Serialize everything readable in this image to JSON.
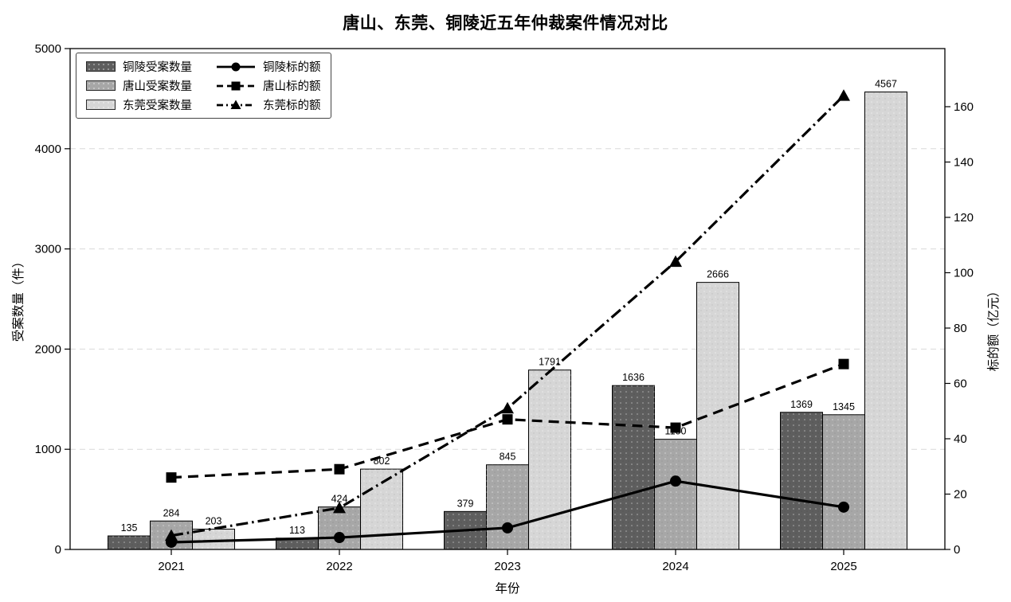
{
  "chart_data": {
    "type": "bar+line",
    "title": "唐山、东莞、铜陵近五年仲裁案件情况对比",
    "xlabel": "年份",
    "ylabel_left": "受案数量（件）",
    "ylabel_right": "标的额（亿元）",
    "categories": [
      "2021",
      "2022",
      "2023",
      "2024",
      "2025"
    ],
    "left_axis": {
      "min": 0,
      "max": 5000,
      "ticks": [
        0,
        1000,
        2000,
        3000,
        4000,
        5000
      ]
    },
    "right_axis": {
      "min": 0,
      "max": 181,
      "ticks": [
        0,
        20,
        40,
        60,
        80,
        100,
        120,
        140,
        160
      ]
    },
    "grid": "horizontal-dashed",
    "legend_position": "upper-left",
    "line_color": "#000000",
    "bar_series": [
      {
        "name": "铜陵受案数量",
        "color": "#5e5e5e",
        "values": [
          135,
          113,
          379,
          1636,
          1369
        ]
      },
      {
        "name": "唐山受案数量",
        "color": "#a7a7a7",
        "values": [
          284,
          424,
          845,
          1100,
          1345
        ]
      },
      {
        "name": "东莞受案数量",
        "color": "#d6d6d6",
        "values": [
          203,
          802,
          1791,
          2666,
          4567
        ]
      }
    ],
    "line_series": [
      {
        "name": "铜陵标的额",
        "dash": "solid",
        "marker": "circle",
        "values": [
          2.6,
          4.3,
          7.8,
          24.7,
          15.3
        ]
      },
      {
        "name": "唐山标的额",
        "dash": "dashed",
        "marker": "square",
        "values": [
          26,
          29,
          47,
          44,
          67
        ]
      },
      {
        "name": "东莞标的额",
        "dash": "dashdot",
        "marker": "triangle",
        "values": [
          5,
          15,
          51,
          104,
          164
        ]
      }
    ]
  }
}
